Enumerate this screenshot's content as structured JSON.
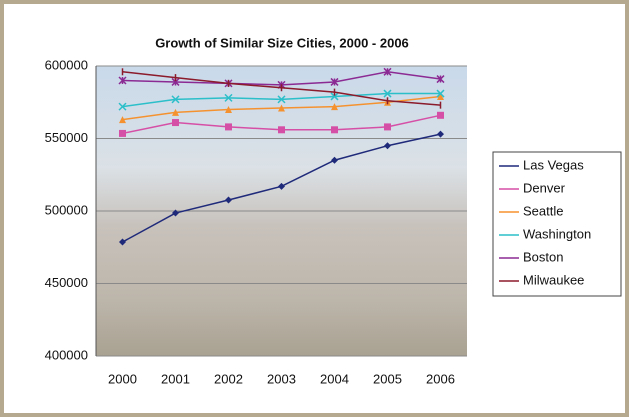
{
  "chart_data": {
    "type": "line",
    "title": "Growth of Similar Size Cities, 2000 - 2006",
    "categories": [
      "2000",
      "2001",
      "2002",
      "2003",
      "2004",
      "2005",
      "2006"
    ],
    "series": [
      {
        "name": "Las Vegas",
        "color": "#1f2a7a",
        "values": [
          478600,
          498600,
          507600,
          517000,
          535000,
          545000,
          553000
        ]
      },
      {
        "name": "Denver",
        "color": "#d64fa6",
        "values": [
          553500,
          561000,
          558000,
          556000,
          556000,
          558000,
          566000
        ]
      },
      {
        "name": "Seattle",
        "color": "#f5922f",
        "values": [
          563000,
          568000,
          570000,
          571000,
          572000,
          575000,
          579000
        ]
      },
      {
        "name": "Washington",
        "color": "#2bbfc9",
        "values": [
          572000,
          577000,
          578000,
          577000,
          579000,
          581000,
          581000
        ]
      },
      {
        "name": "Boston",
        "color": "#8b2a93",
        "values": [
          590000,
          589000,
          588000,
          587000,
          589000,
          596000,
          591000
        ]
      },
      {
        "name": "Milwaukee",
        "color": "#8b1a2a",
        "values": [
          596000,
          592000,
          588000,
          585000,
          582000,
          576000,
          573000
        ]
      }
    ],
    "ylim": [
      400000,
      600000
    ],
    "yticks": [
      400000,
      450000,
      500000,
      550000,
      600000
    ],
    "grid": true
  }
}
